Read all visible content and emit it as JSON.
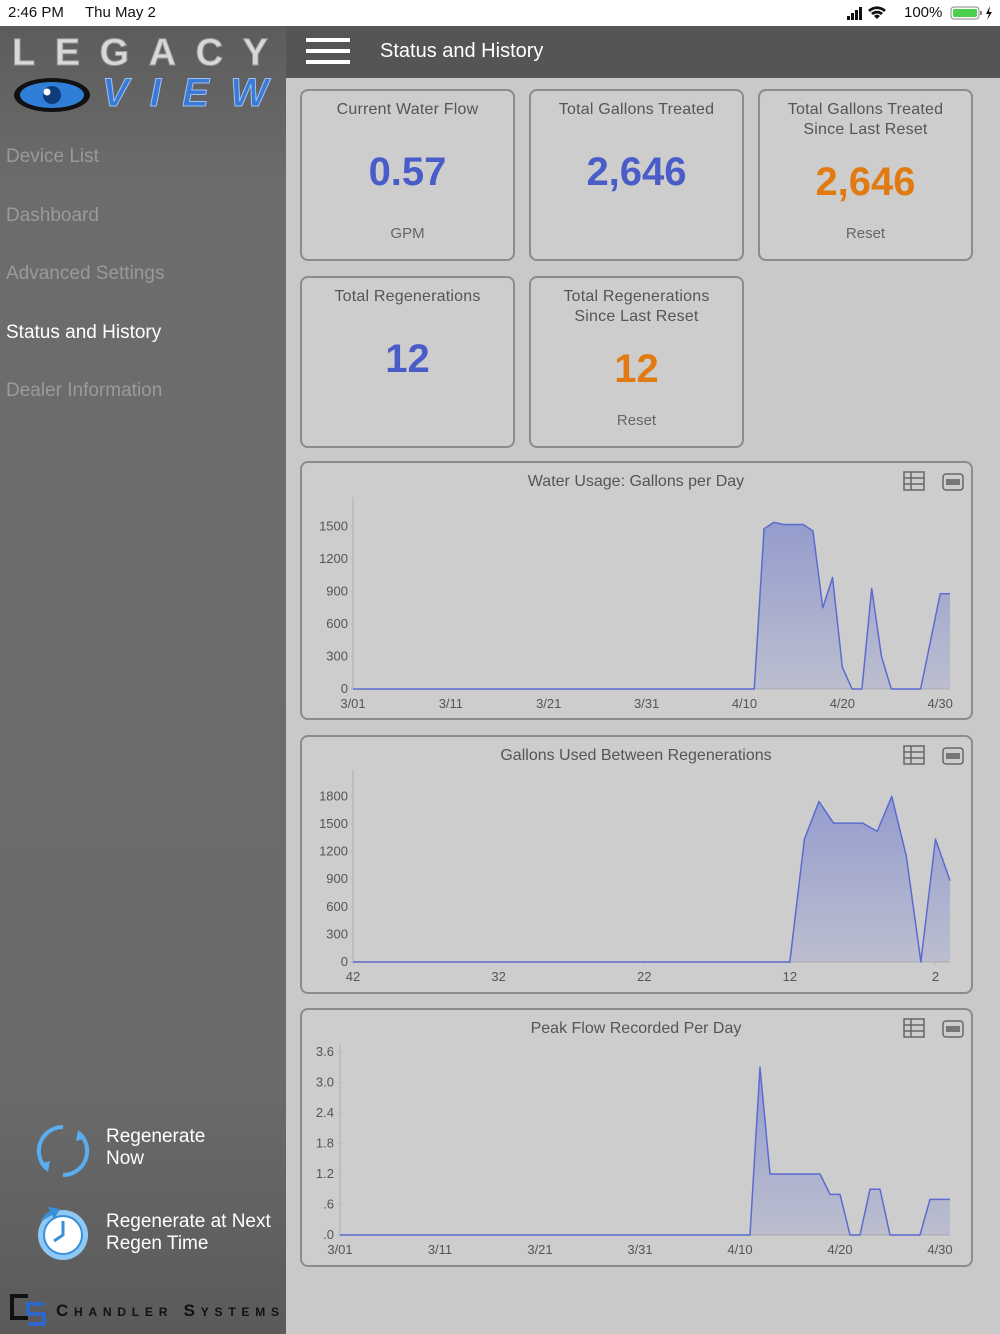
{
  "status_bar": {
    "time": "2:46 PM",
    "date": "Thu May 2",
    "battery": "100%"
  },
  "logo": {
    "line1": "LEGACY",
    "line2": "VIEW"
  },
  "header": {
    "title": "Status and History"
  },
  "nav": {
    "items": [
      "Device List",
      "Dashboard",
      "Advanced Settings",
      "Status and History",
      "Dealer Information"
    ],
    "active": 3
  },
  "actions": [
    "Regenerate Now",
    "Regenerate at Next Regen Time"
  ],
  "brand": "Chandler Systems",
  "cards": [
    {
      "title": "Current Water Flow",
      "value": "0.57",
      "color": "#4a5cc8",
      "footer": "GPM"
    },
    {
      "title": "Total Gallons Treated",
      "value": "2,646",
      "color": "#4a5cc8"
    },
    {
      "title": "Total Gallons Treated Since Last Reset",
      "value": "2,646",
      "color": "#e27a12",
      "footer": "Reset"
    },
    {
      "title": "Total Regenerations",
      "value": "12",
      "color": "#4a5cc8"
    },
    {
      "title": "Total Regenerations Since Last Reset",
      "value": "12",
      "color": "#e27a12",
      "footer": "Reset"
    }
  ],
  "chart_data": [
    {
      "type": "area",
      "title": "Water Usage: Gallons per Day",
      "color": "#5b6bd0",
      "categories": [
        "3/01",
        null,
        null,
        null,
        null,
        null,
        null,
        null,
        null,
        null,
        "3/11",
        null,
        null,
        null,
        null,
        null,
        null,
        null,
        null,
        null,
        "3/21",
        null,
        null,
        null,
        null,
        null,
        null,
        null,
        null,
        null,
        "3/31",
        null,
        null,
        null,
        null,
        null,
        null,
        null,
        null,
        null,
        "4/10",
        null,
        null,
        null,
        null,
        null,
        null,
        null,
        null,
        null,
        "4/20",
        null,
        null,
        null,
        null,
        null,
        null,
        null,
        null,
        null,
        "4/30",
        null
      ],
      "values": [
        0,
        0,
        0,
        0,
        0,
        0,
        0,
        0,
        0,
        0,
        0,
        0,
        0,
        0,
        0,
        0,
        0,
        0,
        0,
        0,
        0,
        0,
        0,
        0,
        0,
        0,
        0,
        0,
        0,
        0,
        0,
        0,
        0,
        0,
        0,
        0,
        0,
        0,
        0,
        0,
        0,
        0,
        1480,
        1540,
        1520,
        1520,
        1520,
        1460,
        750,
        1030,
        200,
        0,
        0,
        930,
        300,
        0,
        0,
        0,
        0,
        440,
        880,
        880
      ],
      "ylim": [
        0,
        1700
      ],
      "yticks": [
        0,
        300,
        600,
        900,
        1200,
        1500
      ]
    },
    {
      "type": "area",
      "title": "Gallons Used Between Regenerations",
      "color": "#5b6bd0",
      "x": [
        42,
        41,
        40,
        39,
        38,
        37,
        36,
        35,
        34,
        33,
        32,
        31,
        30,
        29,
        28,
        27,
        26,
        25,
        24,
        23,
        22,
        21,
        20,
        19,
        18,
        17,
        16,
        15,
        14,
        13,
        12,
        11,
        10,
        9,
        8,
        7,
        6,
        5,
        4,
        3,
        2,
        1
      ],
      "values": [
        0,
        0,
        0,
        0,
        0,
        0,
        0,
        0,
        0,
        0,
        0,
        0,
        0,
        0,
        0,
        0,
        0,
        0,
        0,
        0,
        0,
        0,
        0,
        0,
        0,
        0,
        0,
        0,
        0,
        0,
        0,
        1335,
        1745,
        1510,
        1510,
        1510,
        1420,
        1800,
        1150,
        0,
        1335,
        885
      ],
      "xlim": [
        42,
        1
      ],
      "xticks": [
        42,
        32,
        22,
        12,
        2
      ],
      "ylim": [
        0,
        2000
      ],
      "yticks": [
        0,
        300,
        600,
        900,
        1200,
        1500,
        1800
      ]
    },
    {
      "type": "area",
      "title": "Peak Flow Recorded Per Day",
      "color": "#5b6bd0",
      "categories": [
        "3/01",
        null,
        null,
        null,
        null,
        null,
        null,
        null,
        null,
        null,
        "3/11",
        null,
        null,
        null,
        null,
        null,
        null,
        null,
        null,
        null,
        "3/21",
        null,
        null,
        null,
        null,
        null,
        null,
        null,
        null,
        null,
        "3/31",
        null,
        null,
        null,
        null,
        null,
        null,
        null,
        null,
        null,
        "4/10",
        null,
        null,
        null,
        null,
        null,
        null,
        null,
        null,
        null,
        "4/20",
        null,
        null,
        null,
        null,
        null,
        null,
        null,
        null,
        null,
        "4/30",
        null
      ],
      "values": [
        0,
        0,
        0,
        0,
        0,
        0,
        0,
        0,
        0,
        0,
        0,
        0,
        0,
        0,
        0,
        0,
        0,
        0,
        0,
        0,
        0,
        0,
        0,
        0,
        0,
        0,
        0,
        0,
        0,
        0,
        0,
        0,
        0,
        0,
        0,
        0,
        0,
        0,
        0,
        0,
        0,
        0,
        3.3,
        1.2,
        1.2,
        1.2,
        1.2,
        1.2,
        1.2,
        0.8,
        0.8,
        0,
        0,
        0.9,
        0.9,
        0,
        0,
        0,
        0,
        0.7,
        0.7,
        0.7
      ],
      "ylim": [
        0,
        3.6
      ],
      "yticks": [
        {
          "value": 0,
          "label": ".0"
        },
        {
          "value": 0.6,
          "label": ".6"
        },
        1.2,
        1.8,
        2.4,
        {
          "value": 3,
          "label": "3.0"
        },
        3.6
      ]
    }
  ]
}
